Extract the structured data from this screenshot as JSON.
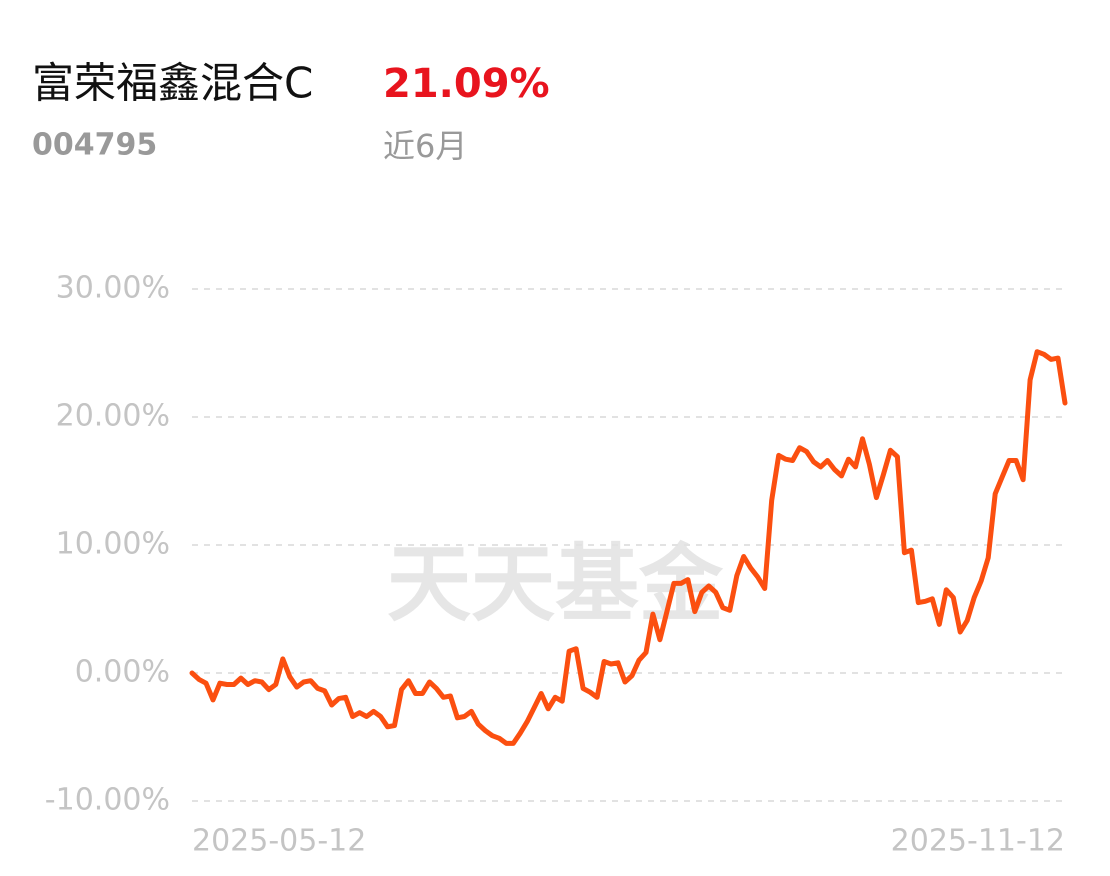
{
  "header": {
    "title": "富荣福鑫混合C",
    "return": "21.09%",
    "code": "004795",
    "period": "近6月"
  },
  "chart_data": {
    "type": "line",
    "watermark": "天天基金",
    "categories": [
      "2025-05-12",
      null,
      null,
      null,
      null,
      null,
      null,
      null,
      null,
      null,
      null,
      null,
      null,
      null,
      null,
      null,
      null,
      null,
      null,
      null,
      null,
      null,
      null,
      null,
      null,
      null,
      null,
      null,
      null,
      null,
      null,
      null,
      null,
      null,
      null,
      null,
      null,
      null,
      null,
      null,
      null,
      null,
      null,
      null,
      null,
      null,
      null,
      null,
      null,
      null,
      null,
      null,
      null,
      null,
      null,
      null,
      null,
      null,
      null,
      null,
      null,
      null,
      null,
      null,
      null,
      null,
      null,
      null,
      null,
      null,
      null,
      null,
      null,
      null,
      null,
      null,
      null,
      null,
      null,
      null,
      null,
      null,
      null,
      null,
      null,
      null,
      null,
      null,
      null,
      null,
      null,
      null,
      null,
      null,
      null,
      null,
      null,
      null,
      null,
      null,
      null,
      null,
      null,
      null,
      null,
      null,
      null,
      null,
      null,
      null,
      null,
      null,
      null,
      null,
      null,
      null,
      null,
      null,
      null,
      null,
      null,
      null,
      null,
      null,
      null,
      "2025-11-12"
    ],
    "series": [
      {
        "color": "#fb4f10",
        "values": [
          0,
          -0.5,
          -0.8,
          -2.1,
          -0.8,
          -0.9,
          -0.9,
          -0.4,
          -0.9,
          -0.6,
          -0.7,
          -1.3,
          -0.9,
          1.1,
          -0.3,
          -1.1,
          -0.7,
          -0.6,
          -1.2,
          -1.4,
          -2.5,
          -2.0,
          -1.9,
          -3.4,
          -3.1,
          -3.4,
          -3.0,
          -3.4,
          -4.2,
          -4.1,
          -1.3,
          -0.6,
          -1.6,
          -1.6,
          -0.7,
          -1.2,
          -1.9,
          -1.8,
          -3.5,
          -3.4,
          -3.0,
          -4.0,
          -4.5,
          -4.9,
          -5.1,
          -5.5,
          -5.5,
          -4.7,
          -3.8,
          -2.7,
          -1.6,
          -2.8,
          -1.9,
          -2.2,
          1.7,
          1.9,
          -1.2,
          -1.5,
          -1.9,
          0.9,
          0.7,
          0.8,
          -0.7,
          -0.2,
          1.0,
          1.6,
          4.6,
          2.6,
          4.8,
          7.0,
          7.0,
          7.3,
          4.8,
          6.3,
          6.8,
          6.3,
          5.1,
          4.9,
          7.6,
          9.1,
          8.2,
          7.5,
          6.6,
          13.5,
          17.0,
          16.7,
          16.6,
          17.6,
          17.3,
          16.5,
          16.1,
          16.6,
          15.9,
          15.4,
          16.7,
          16.1,
          18.3,
          16.3,
          13.7,
          15.5,
          17.4,
          16.9,
          9.4,
          9.6,
          5.5,
          5.6,
          5.8,
          3.8,
          6.5,
          5.9,
          3.2,
          4.1,
          5.9,
          7.2,
          9.0,
          14.0,
          15.3,
          16.6,
          16.6,
          15.1,
          22.9,
          25.1,
          24.9,
          24.5,
          24.6,
          21.09
        ]
      }
    ],
    "ylim": [
      -10,
      30
    ],
    "yticks": [
      {
        "value": 30,
        "label": "30.00%"
      },
      {
        "value": 20,
        "label": "20.00%"
      },
      {
        "value": 10,
        "label": "10.00%"
      },
      {
        "value": 0,
        "label": "0.00%"
      },
      {
        "value": -10,
        "label": "-10.00%"
      }
    ],
    "grid": true
  }
}
